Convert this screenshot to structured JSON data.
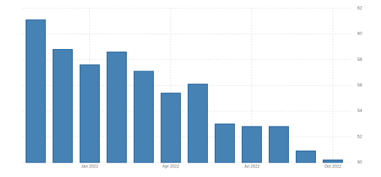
{
  "chart_data": {
    "type": "bar",
    "categories": [
      null,
      null,
      "Jan 2022",
      null,
      null,
      "Apr 2022",
      null,
      null,
      "Jul 2022",
      null,
      null,
      "Oct 2022"
    ],
    "values": [
      61.1,
      58.8,
      57.6,
      58.6,
      57.1,
      55.4,
      56.1,
      53.0,
      52.8,
      52.8,
      50.9,
      50.2
    ],
    "color": "#4682b4",
    "ylim": [
      50,
      62
    ],
    "yticks": [
      50,
      52,
      54,
      56,
      58,
      60,
      62
    ],
    "grid": true
  }
}
